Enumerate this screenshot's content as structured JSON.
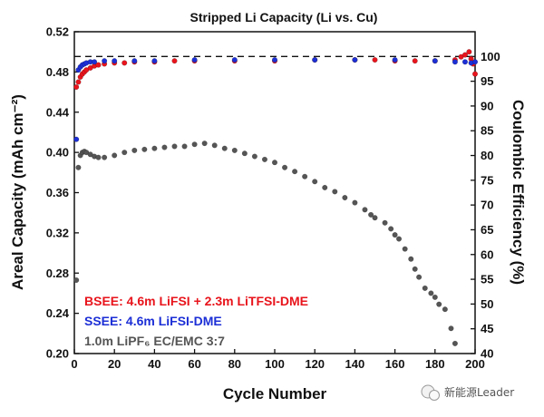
{
  "chart_data": {
    "type": "scatter",
    "title": "Stripped Li Capacity (Li vs. Cu)",
    "xlabel": "Cycle Number",
    "ylabel_left": "Areal Capacity (mAh cm⁻²)",
    "ylabel_right": "Coulombic Efficiency (%)",
    "xlim": [
      0,
      200
    ],
    "ylim_left": [
      0.2,
      0.52
    ],
    "ylim_right": [
      40,
      105
    ],
    "x_ticks": [
      0,
      20,
      40,
      60,
      80,
      100,
      120,
      140,
      160,
      180,
      200
    ],
    "y_left_ticks": [
      0.2,
      0.24,
      0.28,
      0.32,
      0.36,
      0.4,
      0.44,
      0.48,
      0.52
    ],
    "y_right_ticks": [
      40,
      45,
      50,
      55,
      60,
      65,
      70,
      75,
      80,
      85,
      90,
      95,
      100
    ],
    "reference_line": {
      "axis": "right",
      "value": 100,
      "style": "dashed"
    },
    "series": [
      {
        "name": "BSEE: 4.6m LiFSI + 2.3m LiTFSI-DME",
        "axis": "left",
        "color": "#e8141c",
        "x": [
          1,
          2,
          3,
          4,
          5,
          6,
          8,
          10,
          12,
          15,
          20,
          25,
          30,
          40,
          50,
          60,
          80,
          100,
          120,
          140,
          150,
          160,
          170,
          180,
          190,
          193,
          195,
          197,
          198,
          199,
          200
        ],
        "y": [
          0.465,
          0.47,
          0.475,
          0.478,
          0.48,
          0.482,
          0.484,
          0.486,
          0.487,
          0.488,
          0.489,
          0.489,
          0.49,
          0.49,
          0.491,
          0.491,
          0.491,
          0.491,
          0.492,
          0.492,
          0.492,
          0.491,
          0.491,
          0.491,
          0.492,
          0.495,
          0.497,
          0.5,
          0.493,
          0.488,
          0.478
        ]
      },
      {
        "name": "SSEE: 4.6m LiFSI-DME",
        "axis": "left",
        "color": "#1c2fd6",
        "x": [
          1,
          2,
          3,
          4,
          5,
          6,
          8,
          10,
          15,
          20,
          30,
          40,
          60,
          80,
          100,
          120,
          140,
          160,
          180,
          190,
          195,
          198,
          200
        ],
        "y": [
          0.413,
          0.482,
          0.485,
          0.487,
          0.488,
          0.489,
          0.49,
          0.49,
          0.491,
          0.491,
          0.491,
          0.491,
          0.492,
          0.492,
          0.492,
          0.492,
          0.492,
          0.492,
          0.491,
          0.49,
          0.49,
          0.489,
          0.49
        ]
      },
      {
        "name": "1.0m LiPF₆ EC/EMC 3:7",
        "axis": "left",
        "color": "#555555",
        "x": [
          1,
          2,
          3,
          4,
          5,
          6,
          8,
          10,
          12,
          15,
          20,
          25,
          30,
          35,
          40,
          45,
          50,
          55,
          60,
          65,
          70,
          75,
          80,
          85,
          90,
          95,
          100,
          105,
          110,
          115,
          120,
          125,
          130,
          135,
          140,
          145,
          148,
          150,
          155,
          158,
          160,
          162,
          165,
          168,
          170,
          172,
          175,
          178,
          180,
          182,
          185,
          188,
          190
        ],
        "y": [
          0.273,
          0.385,
          0.397,
          0.4,
          0.401,
          0.4,
          0.398,
          0.396,
          0.395,
          0.395,
          0.397,
          0.4,
          0.402,
          0.403,
          0.404,
          0.405,
          0.406,
          0.406,
          0.408,
          0.409,
          0.407,
          0.404,
          0.402,
          0.399,
          0.396,
          0.393,
          0.39,
          0.385,
          0.381,
          0.376,
          0.371,
          0.365,
          0.361,
          0.355,
          0.35,
          0.343,
          0.338,
          0.335,
          0.33,
          0.324,
          0.318,
          0.314,
          0.304,
          0.294,
          0.284,
          0.276,
          0.265,
          0.26,
          0.256,
          0.249,
          0.244,
          0.225,
          0.21
        ]
      }
    ],
    "legend": {
      "placement": "bottom-left",
      "entries": [
        {
          "label": "BSEE: 4.6m LiFSI + 2.3m LiTFSI-DME",
          "color": "#e8141c"
        },
        {
          "label": "SSEE: 4.6m LiFSI-DME",
          "color": "#1c2fd6"
        },
        {
          "label": "1.0m LiPF₆ EC/EMC 3:7",
          "color": "#555555"
        }
      ]
    },
    "grid": false
  },
  "watermark": {
    "text": "新能源Leader",
    "icon": "wechat-icon"
  }
}
